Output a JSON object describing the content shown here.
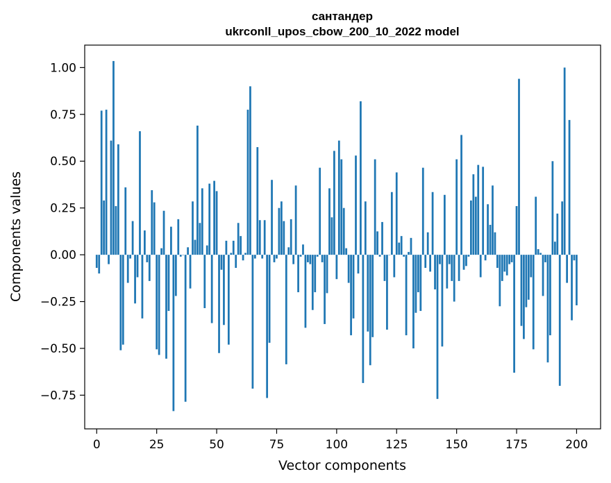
{
  "chart_data": {
    "type": "bar",
    "title_line1": "сантандер",
    "title_line2": "ukrconll_upos_cbow_200_10_2022 model",
    "xlabel": "Vector components",
    "ylabel": "Components values",
    "xlim": [
      -5,
      210
    ],
    "ylim": [
      -0.93,
      1.12
    ],
    "x_ticks": [
      0,
      25,
      50,
      75,
      100,
      125,
      150,
      175,
      200
    ],
    "x_tick_labels": [
      "0",
      "25",
      "50",
      "75",
      "100",
      "125",
      "150",
      "175",
      "200"
    ],
    "y_ticks": [
      1.0,
      0.75,
      0.5,
      0.25,
      0.0,
      -0.25,
      -0.5,
      -0.75
    ],
    "y_tick_labels": [
      "1.00",
      "0.75",
      "0.50",
      "0.25",
      "0.00",
      "−0.25",
      "−0.50",
      "−0.75"
    ],
    "bar_color": "#1f77b4",
    "values": [
      -0.07,
      -0.1,
      0.77,
      0.29,
      0.775,
      -0.05,
      0.61,
      1.035,
      0.26,
      0.59,
      -0.51,
      -0.48,
      0.36,
      -0.15,
      -0.02,
      0.18,
      -0.26,
      -0.12,
      0.66,
      -0.34,
      0.13,
      -0.04,
      -0.14,
      0.345,
      0.28,
      -0.505,
      -0.535,
      0.035,
      0.235,
      -0.555,
      -0.3,
      0.15,
      -0.835,
      -0.22,
      0.19,
      -0.01,
      0.0,
      -0.785,
      0.04,
      -0.18,
      0.285,
      0.08,
      0.69,
      0.17,
      0.355,
      -0.285,
      0.05,
      0.38,
      -0.365,
      0.395,
      0.34,
      -0.525,
      -0.08,
      -0.375,
      0.075,
      -0.48,
      0.01,
      0.075,
      -0.07,
      0.17,
      0.1,
      -0.03,
      0.01,
      0.775,
      0.9,
      -0.715,
      -0.02,
      0.575,
      0.185,
      -0.02,
      0.185,
      -0.765,
      -0.47,
      0.4,
      -0.04,
      -0.02,
      0.25,
      0.285,
      0.18,
      -0.585,
      0.04,
      0.19,
      -0.05,
      0.37,
      -0.2,
      -0.01,
      0.055,
      -0.39,
      -0.04,
      -0.05,
      -0.295,
      -0.2,
      -0.01,
      0.465,
      -0.04,
      -0.37,
      -0.205,
      0.355,
      0.2,
      0.555,
      -0.13,
      0.61,
      0.51,
      0.25,
      0.035,
      -0.15,
      -0.43,
      -0.34,
      0.53,
      -0.1,
      0.82,
      -0.685,
      0.285,
      -0.41,
      -0.59,
      -0.44,
      0.51,
      0.125,
      -0.01,
      0.175,
      -0.14,
      -0.4,
      0.0,
      0.335,
      -0.12,
      0.44,
      0.065,
      0.1,
      -0.01,
      -0.43,
      0.015,
      0.09,
      -0.5,
      -0.31,
      -0.2,
      -0.3,
      0.465,
      -0.07,
      0.12,
      -0.09,
      0.335,
      -0.185,
      -0.77,
      -0.05,
      -0.49,
      0.32,
      -0.18,
      -0.05,
      -0.14,
      -0.25,
      0.51,
      -0.14,
      0.64,
      -0.08,
      -0.06,
      -0.01,
      0.29,
      0.43,
      0.31,
      0.48,
      -0.12,
      0.47,
      -0.03,
      0.27,
      0.16,
      0.37,
      0.12,
      -0.07,
      -0.275,
      -0.14,
      -0.09,
      -0.11,
      -0.05,
      -0.04,
      -0.63,
      0.26,
      0.94,
      -0.38,
      -0.45,
      -0.28,
      -0.24,
      -0.12,
      -0.505,
      0.31,
      0.03,
      0.01,
      -0.22,
      -0.04,
      -0.575,
      -0.43,
      0.5,
      0.07,
      0.22,
      -0.7,
      0.285,
      1.0,
      -0.15,
      0.72,
      -0.35,
      -0.03,
      -0.27
    ]
  }
}
